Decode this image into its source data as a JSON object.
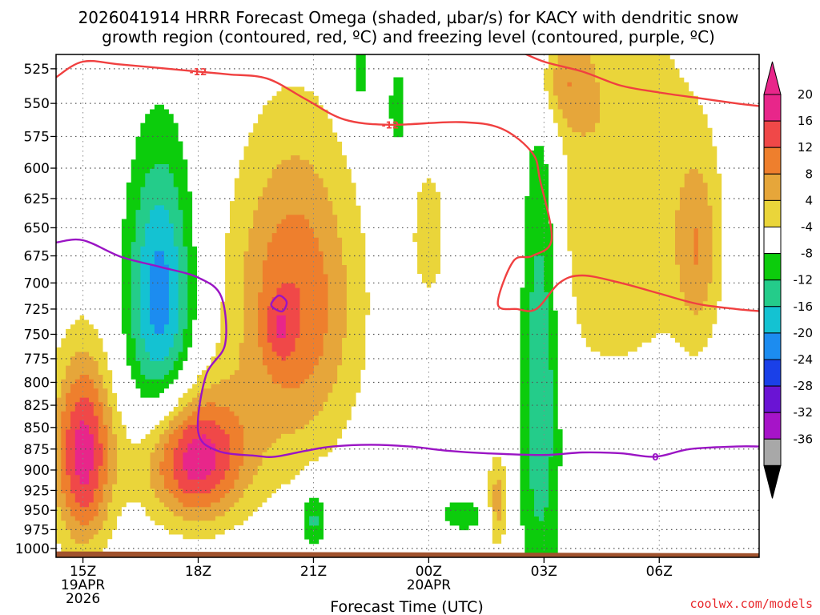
{
  "chart_data": {
    "type": "heatmap",
    "title_lines": [
      "2026041914 HRRR Forecast Omega (shaded, µbar/s) for KACY with dendritic snow",
      "growth region (contoured, red, ºC) and freezing level (contoured, purple, ºC)"
    ],
    "xlabel": "Forecast Time (UTC)",
    "x_range_hours": [
      14.3,
      32.6
    ],
    "x_ticks": [
      {
        "hour": 15,
        "labels": [
          "15Z",
          "19APR",
          "2026"
        ]
      },
      {
        "hour": 18,
        "labels": [
          "18Z"
        ]
      },
      {
        "hour": 21,
        "labels": [
          "21Z"
        ]
      },
      {
        "hour": 24,
        "labels": [
          "00Z",
          "20APR"
        ]
      },
      {
        "hour": 27,
        "labels": [
          "03Z"
        ]
      },
      {
        "hour": 30,
        "labels": [
          "06Z"
        ]
      }
    ],
    "y_ticks_hPa": [
      525,
      550,
      575,
      600,
      625,
      650,
      675,
      700,
      725,
      750,
      775,
      800,
      825,
      850,
      875,
      900,
      925,
      950,
      975,
      1000
    ],
    "y_range_hPa": [
      515,
      1012
    ],
    "colorbar": {
      "labels": [
        "20",
        "16",
        "12",
        "8",
        "4",
        "-4",
        "-8",
        "-12",
        "-16",
        "-20",
        "-24",
        "-28",
        "-32",
        "-36"
      ],
      "bins": [
        {
          "range": [
            20,
            24
          ],
          "color": "#e8268a"
        },
        {
          "range": [
            16,
            20
          ],
          "color": "#f04848"
        },
        {
          "range": [
            12,
            16
          ],
          "color": "#ee7f2d"
        },
        {
          "range": [
            8,
            12
          ],
          "color": "#e6a63a"
        },
        {
          "range": [
            4,
            8
          ],
          "color": "#ead53a"
        },
        {
          "range": [
            -4,
            4
          ],
          "color": "#ffffff"
        },
        {
          "range": [
            -8,
            -4
          ],
          "color": "#0ccc0c"
        },
        {
          "range": [
            -12,
            -8
          ],
          "color": "#24cc8a"
        },
        {
          "range": [
            -16,
            -12
          ],
          "color": "#14c2d2"
        },
        {
          "range": [
            -20,
            -16
          ],
          "color": "#1c8cf0"
        },
        {
          "range": [
            -24,
            -20
          ],
          "color": "#1a40e8"
        },
        {
          "range": [
            -28,
            -24
          ],
          "color": "#6a14d4"
        },
        {
          "range": [
            -32,
            -28
          ],
          "color": "#a614c8"
        },
        {
          "range": [
            -36,
            -32
          ],
          "color": "#a8a8a8"
        }
      ],
      "overflow_high_color": "#e8268a",
      "overflow_low_color": "#000000"
    },
    "omega_features": [
      {
        "name": "positive-cell-15z-low-levels",
        "hour": 15.0,
        "pres": 880,
        "peak": 22,
        "sx": 0.55,
        "sy": 80
      },
      {
        "name": "positive-cell-18z-low-levels",
        "hour": 17.9,
        "pres": 885,
        "peak": 23,
        "sx": 0.95,
        "sy": 55
      },
      {
        "name": "positive-cell-20z-mid-levels",
        "hour": 20.5,
        "pres": 720,
        "peak": 16,
        "sx": 1.15,
        "sy": 110
      },
      {
        "name": "positive-cell-20z-core",
        "hour": 20.1,
        "pres": 745,
        "peak": 6,
        "sx": 0.25,
        "sy": 22
      },
      {
        "name": "positive-cell-00z-upper",
        "hour": 24.0,
        "pres": 655,
        "peak": 5.5,
        "sx": 0.4,
        "sy": 55
      },
      {
        "name": "positive-cell-02z-low-levels",
        "hour": 25.8,
        "pres": 940,
        "peak": 11,
        "sx": 0.2,
        "sy": 40
      },
      {
        "name": "positive-region-03z-upper",
        "hour": 28.8,
        "pres": 620,
        "peak": 8,
        "sx": 1.7,
        "sy": 130
      },
      {
        "name": "positive-cell-07z-mid",
        "hour": 31.0,
        "pres": 670,
        "peak": 9,
        "sx": 0.4,
        "sy": 60
      },
      {
        "name": "positive-cell-03z-top",
        "hour": 27.4,
        "pres": 535,
        "peak": 9,
        "sx": 0.55,
        "sy": 25
      },
      {
        "name": "negative-cell-17z-mid",
        "hour": 17.0,
        "pres": 715,
        "peak": -18,
        "sx": 0.6,
        "sy": 95
      },
      {
        "name": "negative-band-02z",
        "hour": 26.9,
        "pres": 760,
        "peak": -13,
        "sx": 0.4,
        "sy": 210
      },
      {
        "name": "negative-cell-21z-low",
        "hour": 21.0,
        "pres": 960,
        "peak": -10,
        "sx": 0.22,
        "sy": 30
      },
      {
        "name": "negative-cell-00z-low",
        "hour": 24.9,
        "pres": 955,
        "peak": -6,
        "sx": 0.5,
        "sy": 20
      },
      {
        "name": "negative-cell-22z-top",
        "hour": 22.2,
        "pres": 530,
        "peak": -6,
        "sx": 0.3,
        "sy": 25
      },
      {
        "name": "negative-cell-23z-upper",
        "hour": 23.2,
        "pres": 555,
        "peak": -6,
        "sx": 0.25,
        "sy": 30
      }
    ],
    "dgz_contours": [
      {
        "value": -12,
        "label": "-12",
        "color": "#f04040",
        "label_at": [
          {
            "hour": 18.0,
            "pres": 527
          },
          {
            "hour": 23.0,
            "pres": 566
          }
        ],
        "points": [
          [
            14.3,
            531
          ],
          [
            15.0,
            520
          ],
          [
            16.0,
            522
          ],
          [
            18.0,
            527
          ],
          [
            18.8,
            529
          ],
          [
            19.8,
            532
          ],
          [
            20.8,
            547
          ],
          [
            21.8,
            562
          ],
          [
            23.0,
            566
          ],
          [
            24.8,
            564
          ],
          [
            25.9,
            569
          ],
          [
            26.7,
            588
          ],
          [
            26.9,
            610
          ],
          [
            27.2,
            660
          ],
          [
            26.7,
            675
          ],
          [
            26.2,
            680
          ],
          [
            25.8,
            720
          ],
          [
            26.3,
            725
          ],
          [
            26.8,
            725
          ],
          [
            27.4,
            700
          ],
          [
            28.0,
            693
          ],
          [
            29.0,
            700
          ],
          [
            30.0,
            710
          ],
          [
            31.0,
            720
          ],
          [
            32.0,
            725
          ],
          [
            32.6,
            727
          ]
        ]
      },
      {
        "value": -12,
        "label": "",
        "color": "#f04040",
        "points": [
          [
            26.3,
            512
          ],
          [
            27.0,
            520
          ],
          [
            28.0,
            527
          ],
          [
            29.0,
            537
          ],
          [
            30.0,
            542
          ],
          [
            31.0,
            546
          ],
          [
            32.0,
            550
          ],
          [
            32.6,
            552
          ]
        ]
      }
    ],
    "freezing_contours": [
      {
        "value": 0,
        "label": "0",
        "color": "#9a14c4",
        "label_at": [
          {
            "hour": 29.9,
            "pres": 884
          }
        ],
        "points": [
          [
            14.3,
            663
          ],
          [
            15.0,
            661
          ],
          [
            16.0,
            676
          ],
          [
            17.0,
            685
          ],
          [
            18.0,
            695
          ],
          [
            18.6,
            713
          ],
          [
            18.7,
            760
          ],
          [
            18.2,
            793
          ],
          [
            18.0,
            855
          ],
          [
            18.5,
            877
          ],
          [
            19.5,
            883
          ],
          [
            20.0,
            884
          ],
          [
            20.8,
            877
          ],
          [
            21.5,
            872
          ],
          [
            22.5,
            870
          ],
          [
            23.5,
            872
          ],
          [
            24.5,
            877
          ],
          [
            25.5,
            880
          ],
          [
            27.0,
            882
          ],
          [
            28.0,
            879
          ],
          [
            29.0,
            880
          ],
          [
            29.9,
            884
          ],
          [
            30.8,
            875
          ],
          [
            32.0,
            872
          ],
          [
            32.6,
            872
          ]
        ]
      },
      {
        "value": 0,
        "label": "",
        "color": "#9a14c4",
        "closed": true,
        "points": [
          [
            19.9,
            720
          ],
          [
            20.1,
            712
          ],
          [
            20.3,
            718
          ],
          [
            20.2,
            727
          ],
          [
            20.0,
            725
          ]
        ]
      }
    ],
    "terrain_color": "#a0522d"
  },
  "credit": "coolwx.com/models",
  "credit_color": "#e8262a"
}
